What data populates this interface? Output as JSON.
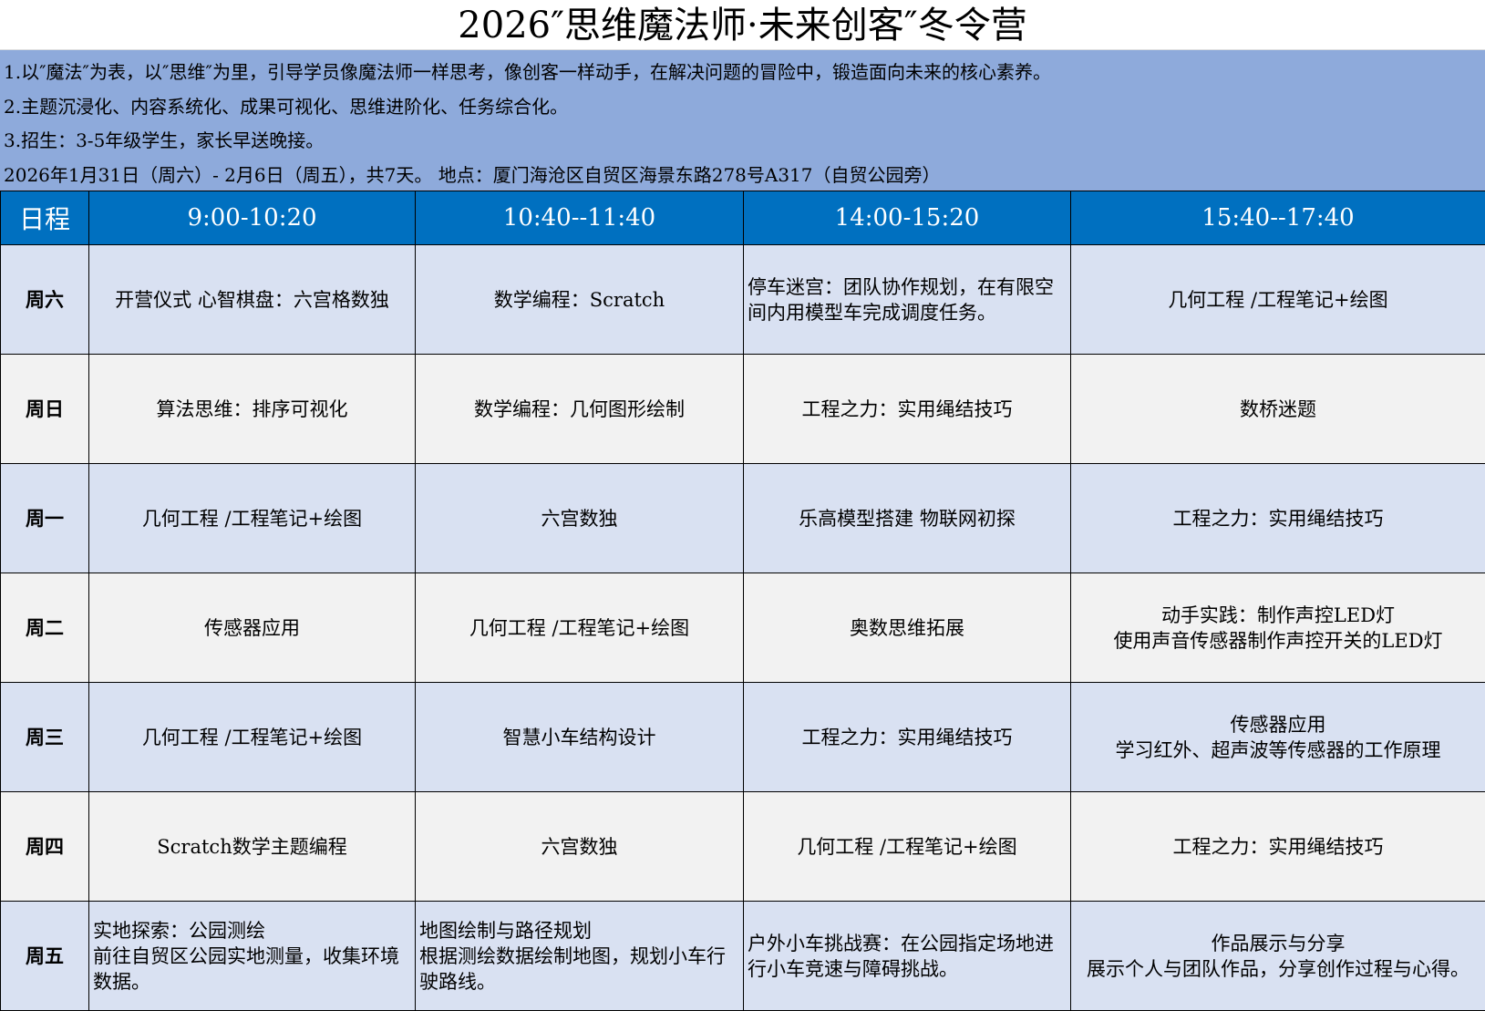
{
  "title": "2026″思维魔法师·未来创客″冬令营",
  "info": [
    "1.以″魔法″为表，以″思维″为里，引导学员像魔法师一样思考，像创客一样动手，在解决问题的冒险中，锻造面向未来的核心素养。",
    "2.主题沉浸化、内容系统化、成果可视化、思维进阶化、任务综合化。",
    "3.招生：3-5年级学生，家长早送晚接。",
    "2026年1月31日（周六）- 2月6日（周五），共7天。 地点：厦门海沧区自贸区海景东路278号A317（自贸公园旁）"
  ],
  "headers": [
    "日程",
    "9:00-10:20",
    "10:40--11:40",
    "14:00-15:20",
    "15:40--17:40"
  ],
  "rows": [
    {
      "day": "周六",
      "cells": [
        "开营仪式   心智棋盘：六宫格数独",
        "数学编程：Scratch",
        "停车迷宫：团队协作规划，在有限空间内用模型车完成调度任务。",
        "几何工程 /工程笔记+绘图"
      ]
    },
    {
      "day": "周日",
      "cells": [
        "算法思维：排序可视化",
        "数学编程：几何图形绘制",
        "工程之力：实用绳结技巧",
        "数桥迷题"
      ]
    },
    {
      "day": "周一",
      "cells": [
        "几何工程 /工程笔记+绘图",
        "六宫数独",
        "乐高模型搭建 物联网初探",
        "工程之力：实用绳结技巧"
      ]
    },
    {
      "day": "周二",
      "cells": [
        "传感器应用",
        "几何工程 /工程笔记+绘图",
        "奥数思维拓展",
        "动手实践：制作声控LED灯\n使用声音传感器制作声控开关的LED灯"
      ]
    },
    {
      "day": "周三",
      "cells": [
        "几何工程 /工程笔记+绘图",
        "智慧小车结构设计",
        "工程之力：实用绳结技巧",
        "传感器应用\n学习红外、超声波等传感器的工作原理"
      ]
    },
    {
      "day": "周四",
      "cells": [
        "Scratch数学主题编程",
        "六宫数独",
        "几何工程 /工程笔记+绘图",
        "工程之力：实用绳结技巧"
      ]
    },
    {
      "day": "周五",
      "cells": [
        "实地探索：公园测绘\n前往自贸区公园实地测量，收集环境数据。",
        "地图绘制与路径规划\n根据测绘数据绘制地图，规划小车行驶路线。",
        "户外小车挑战赛：在公园指定场地进行小车竞速与障碍挑战。",
        "作品展示与分享\n展示个人与团队作品，分享创作过程与心得。"
      ]
    }
  ],
  "colors": {
    "header_bg": "#0070c0",
    "info_bg": "#8eaadb",
    "row_blue": "#d9e1f2",
    "row_gray": "#f2f2f2"
  }
}
